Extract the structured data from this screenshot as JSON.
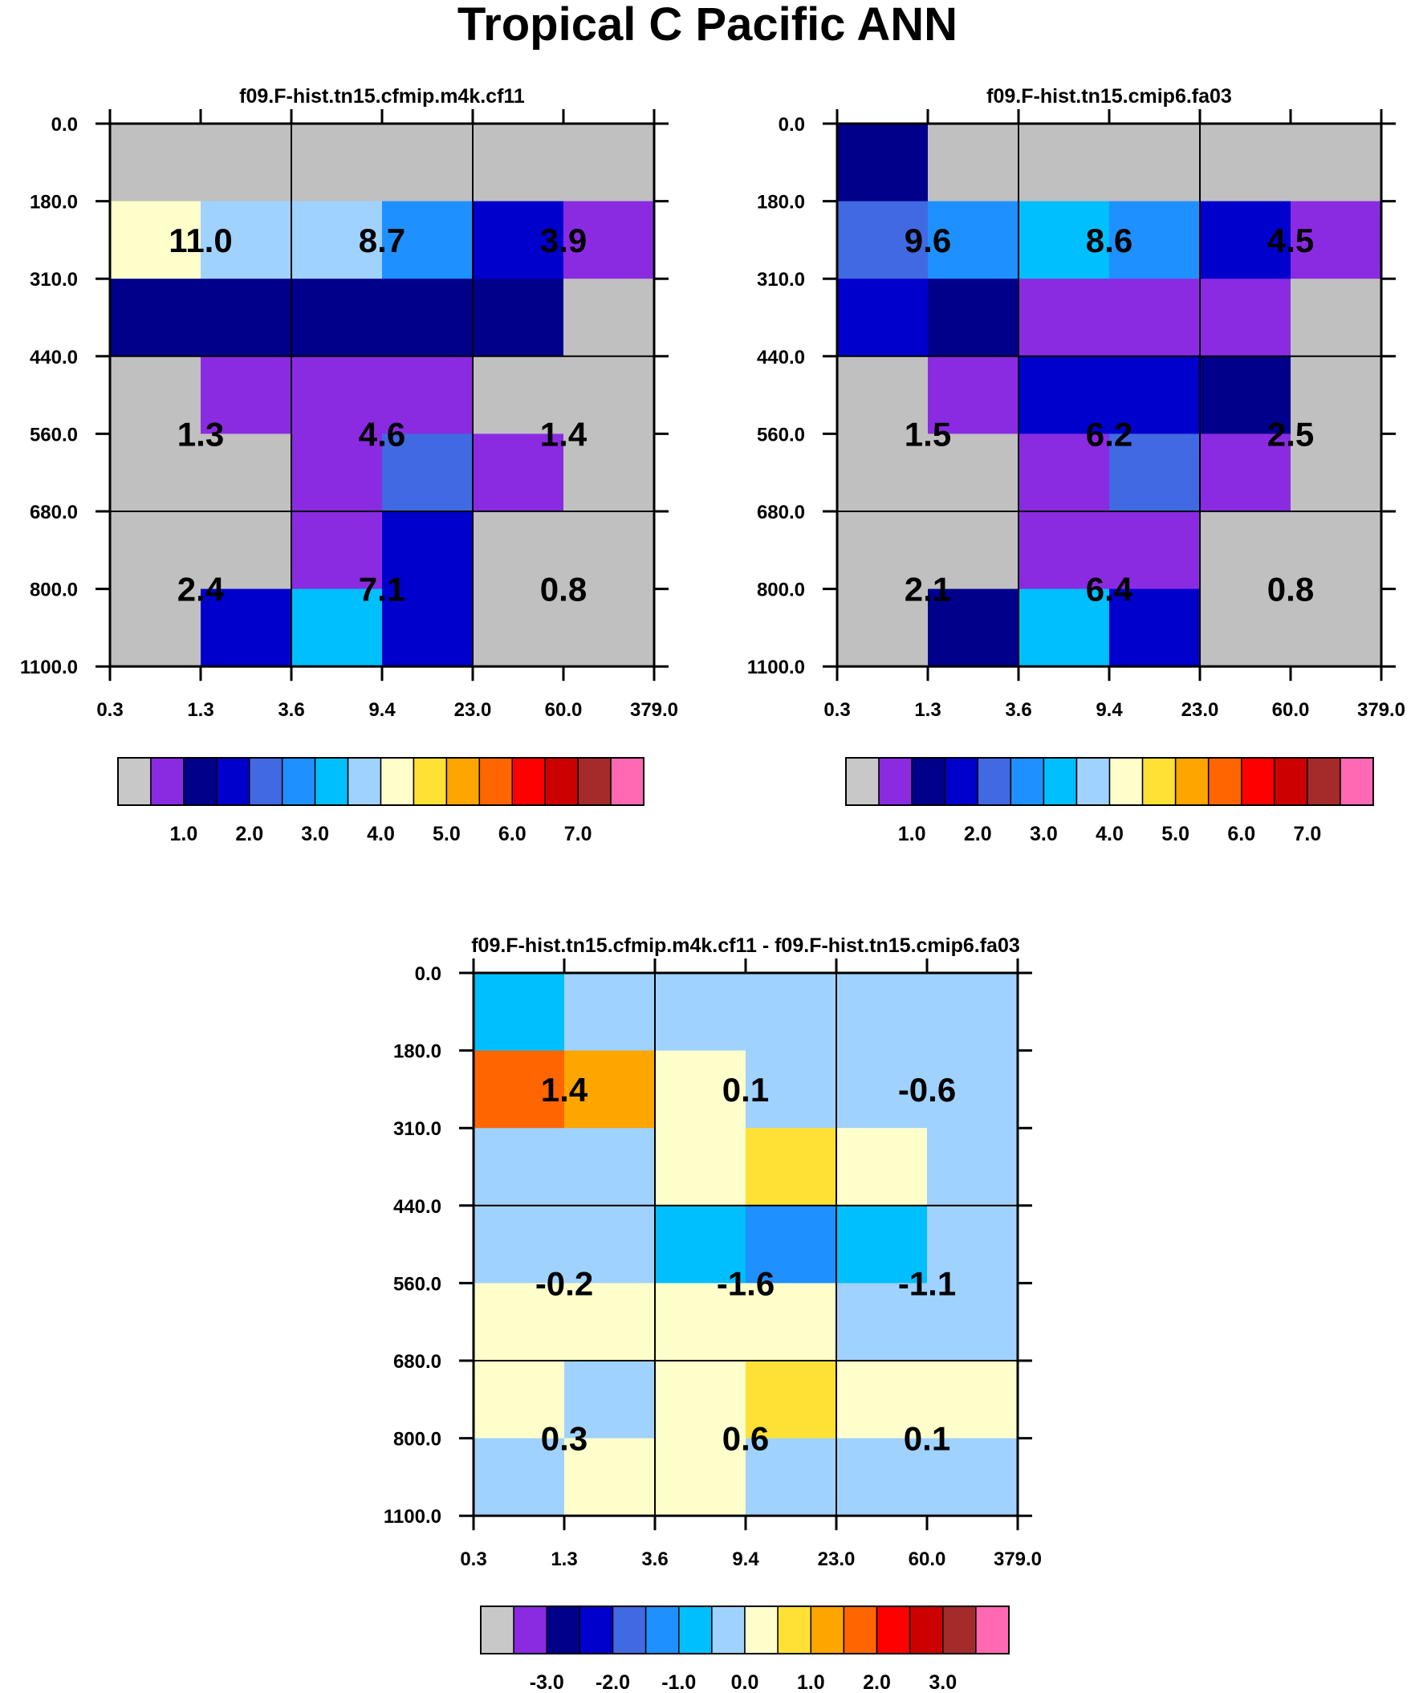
{
  "page_title": "Tropical C Pacific ANN",
  "chart_data": [
    {
      "id": "panel-a",
      "type": "heatmap",
      "title": "f09.F-hist.tn15.cfmip.m4k.cf11",
      "xlabel": "",
      "ylabel": "",
      "x_ticks": [
        "0.3",
        "1.3",
        "3.6",
        "9.4",
        "23.0",
        "60.0",
        "379.0"
      ],
      "y_ticks": [
        "0.0",
        "180.0",
        "310.0",
        "440.0",
        "560.0",
        "680.0",
        "800.0",
        "1100.0"
      ],
      "bins": [
        [
          "gray",
          "gray",
          "gray",
          "gray",
          "gray",
          "gray"
        ],
        [
          "#ffffcc",
          "#a0d2ff",
          "#a0d2ff",
          "#1e90ff",
          "#0000cd",
          "#8a2be2"
        ],
        [
          "#00008b",
          "#00008b",
          "#00008b",
          "#00008b",
          "#00008b",
          "gray"
        ],
        [
          "gray",
          "#8a2be2",
          "#8a2be2",
          "#8a2be2",
          "gray",
          "gray"
        ],
        [
          "gray",
          "gray",
          "#8a2be2",
          "#4169e1",
          "#8a2be2",
          "gray"
        ],
        [
          "gray",
          "gray",
          "#8a2be2",
          "#0000cd",
          "gray",
          "gray"
        ],
        [
          "gray",
          "#0000cd",
          "#00bfff",
          "#0000cd",
          "gray",
          "gray"
        ]
      ],
      "block_values": [
        [
          "11.0",
          "8.7",
          "3.9"
        ],
        [
          "1.3",
          "4.6",
          "1.4"
        ],
        [
          "2.4",
          "7.1",
          "0.8"
        ]
      ],
      "colorbar": {
        "colors": [
          "#c8c8c8",
          "#8a2be2",
          "#00008b",
          "#0000cd",
          "#4169e1",
          "#1e90ff",
          "#00bfff",
          "#a0d2ff",
          "#ffffcc",
          "#ffe135",
          "#ffa500",
          "#ff6600",
          "#ff0000",
          "#cd0000",
          "#a52a2a",
          "#ff69b4"
        ],
        "labels": [
          "1.0",
          "2.0",
          "3.0",
          "4.0",
          "5.0",
          "6.0",
          "7.0"
        ],
        "label_start_boundary": 2
      }
    },
    {
      "id": "panel-b",
      "type": "heatmap",
      "title": "f09.F-hist.tn15.cmip6.fa03",
      "xlabel": "",
      "ylabel": "",
      "x_ticks": [
        "0.3",
        "1.3",
        "3.6",
        "9.4",
        "23.0",
        "60.0",
        "379.0"
      ],
      "y_ticks": [
        "0.0",
        "180.0",
        "310.0",
        "440.0",
        "560.0",
        "680.0",
        "800.0",
        "1100.0"
      ],
      "bins": [
        [
          "#00008b",
          "gray",
          "gray",
          "gray",
          "gray",
          "gray"
        ],
        [
          "#4169e1",
          "#1e90ff",
          "#00bfff",
          "#1e90ff",
          "#0000cd",
          "#8a2be2"
        ],
        [
          "#0000cd",
          "#00008b",
          "#8a2be2",
          "#8a2be2",
          "#8a2be2",
          "gray"
        ],
        [
          "gray",
          "#8a2be2",
          "#0000cd",
          "#0000cd",
          "#00008b",
          "gray"
        ],
        [
          "gray",
          "gray",
          "#8a2be2",
          "#4169e1",
          "#8a2be2",
          "gray"
        ],
        [
          "gray",
          "gray",
          "#8a2be2",
          "#8a2be2",
          "gray",
          "gray"
        ],
        [
          "gray",
          "#00008b",
          "#00bfff",
          "#0000cd",
          "gray",
          "gray"
        ]
      ],
      "block_values": [
        [
          "9.6",
          "8.6",
          "4.5"
        ],
        [
          "1.5",
          "6.2",
          "2.5"
        ],
        [
          "2.1",
          "6.4",
          "0.8"
        ]
      ],
      "colorbar": {
        "colors": [
          "#c8c8c8",
          "#8a2be2",
          "#00008b",
          "#0000cd",
          "#4169e1",
          "#1e90ff",
          "#00bfff",
          "#a0d2ff",
          "#ffffcc",
          "#ffe135",
          "#ffa500",
          "#ff6600",
          "#ff0000",
          "#cd0000",
          "#a52a2a",
          "#ff69b4"
        ],
        "labels": [
          "1.0",
          "2.0",
          "3.0",
          "4.0",
          "5.0",
          "6.0",
          "7.0"
        ],
        "label_start_boundary": 2
      }
    },
    {
      "id": "panel-diff",
      "type": "heatmap",
      "title": "f09.F-hist.tn15.cfmip.m4k.cf11 - f09.F-hist.tn15.cmip6.fa03",
      "xlabel": "",
      "ylabel": "",
      "x_ticks": [
        "0.3",
        "1.3",
        "3.6",
        "9.4",
        "23.0",
        "60.0",
        "379.0"
      ],
      "y_ticks": [
        "0.0",
        "180.0",
        "310.0",
        "440.0",
        "560.0",
        "680.0",
        "800.0",
        "1100.0"
      ],
      "bins": [
        [
          "#00bfff",
          "#a0d2ff",
          "#a0d2ff",
          "#a0d2ff",
          "#a0d2ff",
          "#a0d2ff"
        ],
        [
          "#ff6600",
          "#ffa500",
          "#ffffcc",
          "#a0d2ff",
          "#a0d2ff",
          "#a0d2ff"
        ],
        [
          "#a0d2ff",
          "#a0d2ff",
          "#ffffcc",
          "#ffe135",
          "#ffffcc",
          "#a0d2ff"
        ],
        [
          "#a0d2ff",
          "#a0d2ff",
          "#00bfff",
          "#1e90ff",
          "#00bfff",
          "#a0d2ff"
        ],
        [
          "#ffffcc",
          "#ffffcc",
          "#ffffcc",
          "#ffffcc",
          "#a0d2ff",
          "#a0d2ff"
        ],
        [
          "#ffffcc",
          "#a0d2ff",
          "#ffffcc",
          "#ffe135",
          "#ffffcc",
          "#ffffcc"
        ],
        [
          "#a0d2ff",
          "#ffffcc",
          "#ffffcc",
          "#a0d2ff",
          "#a0d2ff",
          "#a0d2ff"
        ]
      ],
      "block_values": [
        [
          "1.4",
          "0.1",
          "-0.6"
        ],
        [
          "-0.2",
          "-1.6",
          "-1.1"
        ],
        [
          "0.3",
          "0.6",
          "0.1"
        ]
      ],
      "colorbar": {
        "colors": [
          "#c8c8c8",
          "#8a2be2",
          "#00008b",
          "#0000cd",
          "#4169e1",
          "#1e90ff",
          "#00bfff",
          "#a0d2ff",
          "#ffffcc",
          "#ffe135",
          "#ffa500",
          "#ff6600",
          "#ff0000",
          "#cd0000",
          "#a52a2a",
          "#ff69b4"
        ],
        "labels": [
          "-3.0",
          "-2.0",
          "-1.0",
          "0.0",
          "1.0",
          "2.0",
          "3.0"
        ],
        "label_start_boundary": 2
      }
    }
  ]
}
